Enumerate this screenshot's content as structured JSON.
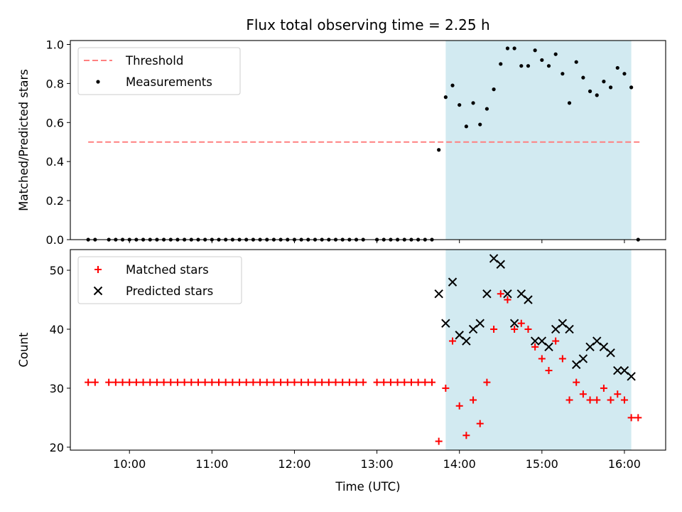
{
  "chart_data": [
    {
      "type": "scatter",
      "title": "Flux total observing time = 2.25 h",
      "ylabel": "Matched/Predicted stars",
      "ylim": [
        0,
        1.02
      ],
      "yticks": [
        "0.0",
        "0.2",
        "0.4",
        "0.6",
        "0.8",
        "1.0"
      ],
      "xlim": [
        "09:17",
        "16:30"
      ],
      "highlight_span": {
        "start": "13:50",
        "end": "16:05",
        "color": "#add8e6"
      },
      "threshold": {
        "name": "Threshold",
        "value": 0.5,
        "start": "09:30",
        "end": "16:12",
        "color": "#ff8080"
      },
      "legend": {
        "position": "upper left",
        "entries": [
          "Threshold",
          "Measurements"
        ]
      },
      "series": [
        {
          "name": "Measurements",
          "marker": "dot",
          "color": "#000000",
          "x": [
            "09:30",
            "09:35",
            "09:45",
            "09:50",
            "09:55",
            "10:00",
            "10:05",
            "10:10",
            "10:15",
            "10:20",
            "10:25",
            "10:30",
            "10:35",
            "10:40",
            "10:45",
            "10:50",
            "10:55",
            "11:00",
            "11:05",
            "11:10",
            "11:15",
            "11:20",
            "11:25",
            "11:30",
            "11:35",
            "11:40",
            "11:45",
            "11:50",
            "11:55",
            "12:00",
            "12:05",
            "12:10",
            "12:15",
            "12:20",
            "12:25",
            "12:30",
            "12:35",
            "12:40",
            "12:45",
            "12:50",
            "13:00",
            "13:05",
            "13:10",
            "13:15",
            "13:20",
            "13:25",
            "13:30",
            "13:35",
            "13:40",
            "13:45",
            "13:50",
            "13:55",
            "14:00",
            "14:05",
            "14:10",
            "14:15",
            "14:20",
            "14:25",
            "14:30",
            "14:35",
            "14:40",
            "14:45",
            "14:50",
            "14:55",
            "15:00",
            "15:05",
            "15:10",
            "15:15",
            "15:20",
            "15:25",
            "15:30",
            "15:35",
            "15:40",
            "15:45",
            "15:50",
            "15:55",
            "16:00",
            "16:05",
            "16:10"
          ],
          "y": [
            0,
            0,
            0,
            0,
            0,
            0,
            0,
            0,
            0,
            0,
            0,
            0,
            0,
            0,
            0,
            0,
            0,
            0,
            0,
            0,
            0,
            0,
            0,
            0,
            0,
            0,
            0,
            0,
            0,
            0,
            0,
            0,
            0,
            0,
            0,
            0,
            0,
            0,
            0,
            0,
            0,
            0,
            0,
            0,
            0,
            0,
            0,
            0,
            0,
            0.46,
            0.73,
            0.79,
            0.69,
            0.58,
            0.7,
            0.59,
            0.67,
            0.77,
            0.9,
            0.98,
            0.98,
            0.89,
            0.89,
            0.97,
            0.92,
            0.89,
            0.95,
            0.85,
            0.7,
            0.91,
            0.83,
            0.76,
            0.74,
            0.81,
            0.78,
            0.88,
            0.85,
            0.78,
            0
          ]
        }
      ]
    },
    {
      "type": "scatter",
      "xlabel": "Time (UTC)",
      "ylabel": "Count",
      "ylim": [
        19.5,
        53.5
      ],
      "yticks": [
        "20",
        "30",
        "40",
        "50"
      ],
      "xlim": [
        "09:17",
        "16:30"
      ],
      "xticks": [
        "10:00",
        "11:00",
        "12:00",
        "13:00",
        "14:00",
        "15:00",
        "16:00"
      ],
      "highlight_span": {
        "start": "13:50",
        "end": "16:05",
        "color": "#add8e6"
      },
      "legend": {
        "position": "upper left",
        "entries": [
          "Matched stars",
          "Predicted stars"
        ]
      },
      "series": [
        {
          "name": "Matched stars",
          "marker": "plus",
          "color": "#ff0000",
          "x": [
            "09:30",
            "09:35",
            "09:45",
            "09:50",
            "09:55",
            "10:00",
            "10:05",
            "10:10",
            "10:15",
            "10:20",
            "10:25",
            "10:30",
            "10:35",
            "10:40",
            "10:45",
            "10:50",
            "10:55",
            "11:00",
            "11:05",
            "11:10",
            "11:15",
            "11:20",
            "11:25",
            "11:30",
            "11:35",
            "11:40",
            "11:45",
            "11:50",
            "11:55",
            "12:00",
            "12:05",
            "12:10",
            "12:15",
            "12:20",
            "12:25",
            "12:30",
            "12:35",
            "12:40",
            "12:45",
            "12:50",
            "13:00",
            "13:05",
            "13:10",
            "13:15",
            "13:20",
            "13:25",
            "13:30",
            "13:35",
            "13:40",
            "13:45",
            "13:50",
            "13:55",
            "14:00",
            "14:05",
            "14:10",
            "14:15",
            "14:20",
            "14:25",
            "14:30",
            "14:35",
            "14:40",
            "14:45",
            "14:50",
            "14:55",
            "15:00",
            "15:05",
            "15:10",
            "15:15",
            "15:20",
            "15:25",
            "15:30",
            "15:35",
            "15:40",
            "15:45",
            "15:50",
            "15:55",
            "16:00",
            "16:05",
            "16:10"
          ],
          "y": [
            31,
            31,
            31,
            31,
            31,
            31,
            31,
            31,
            31,
            31,
            31,
            31,
            31,
            31,
            31,
            31,
            31,
            31,
            31,
            31,
            31,
            31,
            31,
            31,
            31,
            31,
            31,
            31,
            31,
            31,
            31,
            31,
            31,
            31,
            31,
            31,
            31,
            31,
            31,
            31,
            31,
            31,
            31,
            31,
            31,
            31,
            31,
            31,
            31,
            21,
            30,
            38,
            27,
            22,
            28,
            24,
            31,
            40,
            46,
            45,
            40,
            41,
            40,
            37,
            35,
            33,
            38,
            35,
            28,
            31,
            29,
            28,
            28,
            30,
            28,
            29,
            28,
            25,
            25
          ]
        },
        {
          "name": "Predicted stars",
          "marker": "x",
          "color": "#000000",
          "x": [
            "13:45",
            "13:50",
            "13:55",
            "14:00",
            "14:05",
            "14:10",
            "14:15",
            "14:20",
            "14:25",
            "14:30",
            "14:35",
            "14:40",
            "14:45",
            "14:50",
            "14:55",
            "15:00",
            "15:05",
            "15:10",
            "15:15",
            "15:20",
            "15:25",
            "15:30",
            "15:35",
            "15:40",
            "15:45",
            "15:50",
            "15:55",
            "16:00",
            "16:05"
          ],
          "y": [
            46,
            41,
            48,
            39,
            38,
            40,
            41,
            46,
            52,
            51,
            46,
            41,
            46,
            45,
            38,
            38,
            37,
            40,
            41,
            40,
            34,
            35,
            37,
            38,
            37,
            36,
            33,
            33,
            32
          ]
        }
      ]
    }
  ]
}
